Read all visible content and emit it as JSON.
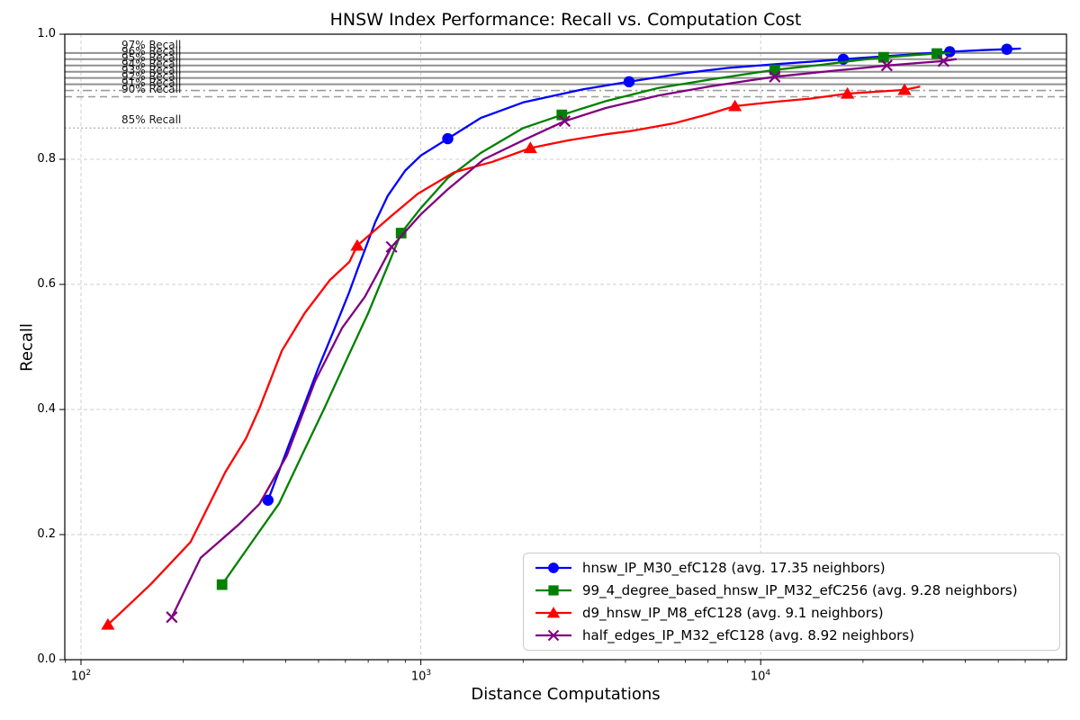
{
  "title": "HNSW Index Performance: Recall vs. Computation Cost",
  "axes": {
    "x": {
      "label": "Distance Computations",
      "scale": "log",
      "ticks": [
        {
          "base": "10",
          "exp": "2",
          "value": 100
        },
        {
          "base": "10",
          "exp": "3",
          "value": 1000
        },
        {
          "base": "10",
          "exp": "4",
          "value": 10000
        }
      ]
    },
    "y": {
      "label": "Recall",
      "ticks": [
        {
          "label": "0.0",
          "value": 0.0
        },
        {
          "label": "0.2",
          "value": 0.2
        },
        {
          "label": "0.4",
          "value": 0.4
        },
        {
          "label": "0.6",
          "value": 0.6
        },
        {
          "label": "0.8",
          "value": 0.8
        },
        {
          "label": "1.0",
          "value": 1.0
        }
      ]
    }
  },
  "chart_data": {
    "type": "line",
    "title": "HNSW Index Performance: Recall vs. Computation Cost",
    "xlabel": "Distance Computations",
    "ylabel": "Recall",
    "x_scale": "log",
    "xlim": [
      89.6,
      79400
    ],
    "ylim": [
      0.0,
      1.0
    ],
    "grid": true,
    "legend_position": "lower right",
    "reference_lines": [
      {
        "label": "97% Recall",
        "value": 0.97,
        "style": "solid"
      },
      {
        "label": "96% Recall",
        "value": 0.96,
        "style": "solid"
      },
      {
        "label": "95% Recall",
        "value": 0.95,
        "style": "solid"
      },
      {
        "label": "94% Recall",
        "value": 0.94,
        "style": "solid"
      },
      {
        "label": "93% Recall",
        "value": 0.93,
        "style": "solid"
      },
      {
        "label": "92% Recall",
        "value": 0.92,
        "style": "solid"
      },
      {
        "label": "91% Recall",
        "value": 0.91,
        "style": "dashdot"
      },
      {
        "label": "90% Recall",
        "value": 0.9,
        "style": "dashed"
      },
      {
        "label": "85% Recall",
        "value": 0.85,
        "style": "dotted"
      }
    ],
    "series": [
      {
        "name": "hnsw_IP_M30_efC128 (avg. 17.35 neighbors)",
        "color": "#0000ff",
        "marker": "circle",
        "markers": [
          [
            355,
            0.255
          ],
          [
            1200,
            0.833
          ],
          [
            4100,
            0.924
          ],
          [
            17500,
            0.96
          ],
          [
            36000,
            0.972
          ],
          [
            53000,
            0.976
          ]
        ],
        "line": [
          [
            355,
            0.255
          ],
          [
            410,
            0.345
          ],
          [
            450,
            0.402
          ],
          [
            500,
            0.467
          ],
          [
            555,
            0.527
          ],
          [
            615,
            0.587
          ],
          [
            650,
            0.623
          ],
          [
            735,
            0.7
          ],
          [
            800,
            0.742
          ],
          [
            900,
            0.782
          ],
          [
            1000,
            0.806
          ],
          [
            1200,
            0.833
          ],
          [
            1500,
            0.866
          ],
          [
            2000,
            0.891
          ],
          [
            3000,
            0.912
          ],
          [
            4100,
            0.924
          ],
          [
            6000,
            0.938
          ],
          [
            8000,
            0.946
          ],
          [
            11000,
            0.952
          ],
          [
            14000,
            0.956
          ],
          [
            17500,
            0.96
          ],
          [
            25000,
            0.966
          ],
          [
            36000,
            0.972
          ],
          [
            45000,
            0.9745
          ],
          [
            53000,
            0.976
          ],
          [
            58000,
            0.977
          ]
        ]
      },
      {
        "name": "99_4_degree_based_hnsw_IP_M32_efC256 (avg. 9.28 neighbors)",
        "color": "#008000",
        "marker": "square",
        "markers": [
          [
            260,
            0.12
          ],
          [
            875,
            0.682
          ],
          [
            2600,
            0.871
          ],
          [
            11000,
            0.943
          ],
          [
            23000,
            0.963
          ],
          [
            33000,
            0.969
          ]
        ],
        "line": [
          [
            260,
            0.12
          ],
          [
            320,
            0.19
          ],
          [
            383,
            0.25
          ],
          [
            446,
            0.326
          ],
          [
            520,
            0.402
          ],
          [
            605,
            0.48
          ],
          [
            700,
            0.554
          ],
          [
            800,
            0.63
          ],
          [
            875,
            0.682
          ],
          [
            1000,
            0.722
          ],
          [
            1200,
            0.77
          ],
          [
            1500,
            0.81
          ],
          [
            2000,
            0.85
          ],
          [
            2600,
            0.871
          ],
          [
            3500,
            0.893
          ],
          [
            5000,
            0.914
          ],
          [
            7000,
            0.927
          ],
          [
            9000,
            0.936
          ],
          [
            11000,
            0.943
          ],
          [
            15000,
            0.951
          ],
          [
            19000,
            0.958
          ],
          [
            23000,
            0.963
          ],
          [
            28000,
            0.9665
          ],
          [
            33000,
            0.969
          ],
          [
            36000,
            0.97
          ]
        ]
      },
      {
        "name": "d9_hnsw_IP_M8_efC128 (avg. 9.1 neighbors)",
        "color": "#ff0000",
        "marker": "triangle",
        "markers": [
          [
            120,
            0.056
          ],
          [
            650,
            0.662
          ],
          [
            2100,
            0.818
          ],
          [
            8400,
            0.885
          ],
          [
            18000,
            0.905
          ],
          [
            26500,
            0.911
          ]
        ],
        "line": [
          [
            120,
            0.056
          ],
          [
            160,
            0.12
          ],
          [
            210,
            0.188
          ],
          [
            266,
            0.3
          ],
          [
            306,
            0.354
          ],
          [
            335,
            0.402
          ],
          [
            390,
            0.494
          ],
          [
            455,
            0.554
          ],
          [
            540,
            0.607
          ],
          [
            616,
            0.636
          ],
          [
            650,
            0.662
          ],
          [
            817,
            0.709
          ],
          [
            980,
            0.745
          ],
          [
            1250,
            0.779
          ],
          [
            1625,
            0.796
          ],
          [
            2100,
            0.818
          ],
          [
            2700,
            0.83
          ],
          [
            3500,
            0.84
          ],
          [
            4130,
            0.845
          ],
          [
            5600,
            0.858
          ],
          [
            7000,
            0.872
          ],
          [
            8400,
            0.885
          ],
          [
            11000,
            0.892
          ],
          [
            14000,
            0.897
          ],
          [
            18000,
            0.905
          ],
          [
            22000,
            0.908
          ],
          [
            26500,
            0.911
          ],
          [
            29300,
            0.916
          ]
        ]
      },
      {
        "name": "half_edges_IP_M32_efC128 (avg. 8.92 neighbors)",
        "color": "#800080",
        "marker": "x",
        "markers": [
          [
            185,
            0.068
          ],
          [
            820,
            0.66
          ],
          [
            2650,
            0.861
          ],
          [
            11000,
            0.932
          ],
          [
            23500,
            0.95
          ],
          [
            34500,
            0.957
          ]
        ],
        "line": [
          [
            185,
            0.068
          ],
          [
            225,
            0.163
          ],
          [
            291,
            0.216
          ],
          [
            335,
            0.249
          ],
          [
            403,
            0.326
          ],
          [
            489,
            0.446
          ],
          [
            586,
            0.53
          ],
          [
            684,
            0.58
          ],
          [
            750,
            0.62
          ],
          [
            820,
            0.66
          ],
          [
            1000,
            0.712
          ],
          [
            1200,
            0.752
          ],
          [
            1532,
            0.8
          ],
          [
            2028,
            0.832
          ],
          [
            2650,
            0.861
          ],
          [
            3500,
            0.882
          ],
          [
            5000,
            0.902
          ],
          [
            7000,
            0.916
          ],
          [
            9000,
            0.925
          ],
          [
            11000,
            0.932
          ],
          [
            16000,
            0.941
          ],
          [
            20000,
            0.946
          ],
          [
            23500,
            0.95
          ],
          [
            29000,
            0.954
          ],
          [
            34500,
            0.957
          ],
          [
            37500,
            0.96
          ]
        ]
      }
    ]
  }
}
